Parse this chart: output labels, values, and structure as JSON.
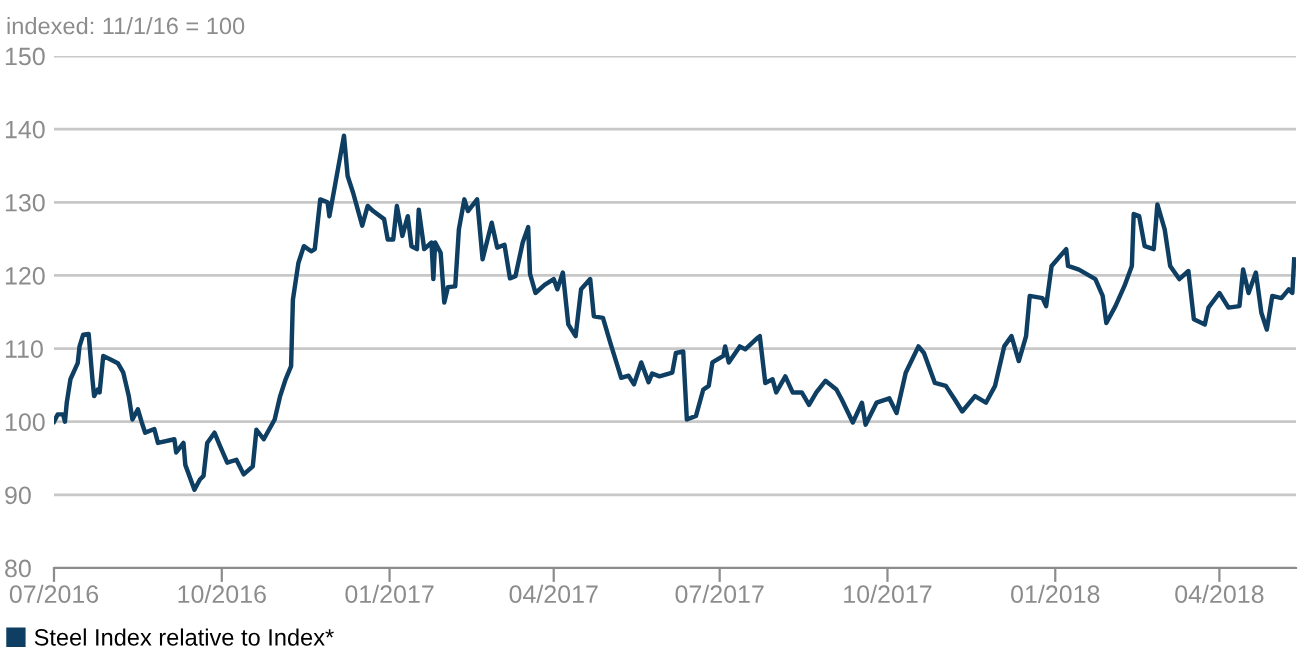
{
  "chart_data": {
    "type": "line",
    "ylabel": "indexed: 11/1/16 = 100",
    "x": [
      "2016-07-01",
      "2016-07-03",
      "2016-07-06",
      "2016-07-07",
      "2016-07-08",
      "2016-07-10",
      "2016-07-14",
      "2016-07-15",
      "2016-07-17",
      "2016-07-20",
      "2016-07-22",
      "2016-07-23",
      "2016-07-25",
      "2016-07-26",
      "2016-07-28",
      "2016-08-01",
      "2016-08-05",
      "2016-08-08",
      "2016-08-11",
      "2016-08-13",
      "2016-08-16",
      "2016-08-18",
      "2016-08-20",
      "2016-08-25",
      "2016-08-27",
      "2016-09-05",
      "2016-09-06",
      "2016-09-10",
      "2016-09-11",
      "2016-09-16",
      "2016-09-19",
      "2016-09-21",
      "2016-09-23",
      "2016-09-27",
      "2016-09-30",
      "2016-10-04",
      "2016-10-09",
      "2016-10-13",
      "2016-10-18",
      "2016-10-20",
      "2016-10-24",
      "2016-10-30",
      "2016-11-02",
      "2016-11-05",
      "2016-11-08",
      "2016-11-09",
      "2016-11-12",
      "2016-11-15",
      "2016-11-19",
      "2016-11-21",
      "2016-11-24",
      "2016-11-28",
      "2016-11-29",
      "2016-12-02",
      "2016-12-07",
      "2016-12-09",
      "2016-12-12",
      "2016-12-14",
      "2016-12-17",
      "2016-12-20",
      "2016-12-23",
      "2016-12-29",
      "2016-12-31",
      "2017-01-03",
      "2017-01-05",
      "2017-01-08",
      "2017-01-11",
      "2017-01-13",
      "2017-01-16",
      "2017-01-17",
      "2017-01-20",
      "2017-01-24",
      "2017-01-25",
      "2017-01-26",
      "2017-01-29",
      "2017-01-31",
      "2017-02-02",
      "2017-02-06",
      "2017-02-08",
      "2017-02-11",
      "2017-02-13",
      "2017-02-18",
      "2017-02-21",
      "2017-02-26",
      "2017-03-01",
      "2017-03-05",
      "2017-03-08",
      "2017-03-11",
      "2017-03-15",
      "2017-03-18",
      "2017-03-19",
      "2017-03-22",
      "2017-03-27",
      "2017-04-01",
      "2017-04-03",
      "2017-04-06",
      "2017-04-09",
      "2017-04-13",
      "2017-04-16",
      "2017-04-21",
      "2017-04-23",
      "2017-04-28",
      "2017-05-02",
      "2017-05-06",
      "2017-05-08",
      "2017-05-12",
      "2017-05-15",
      "2017-05-19",
      "2017-05-23",
      "2017-05-25",
      "2017-05-29",
      "2017-06-05",
      "2017-06-07",
      "2017-06-11",
      "2017-06-13",
      "2017-06-18",
      "2017-06-22",
      "2017-06-25",
      "2017-06-27",
      "2017-07-03",
      "2017-07-04",
      "2017-07-06",
      "2017-07-12",
      "2017-07-15",
      "2017-07-21",
      "2017-07-23",
      "2017-07-26",
      "2017-07-30",
      "2017-08-01",
      "2017-08-06",
      "2017-08-10",
      "2017-08-15",
      "2017-08-19",
      "2017-08-23",
      "2017-08-28",
      "2017-09-03",
      "2017-09-06",
      "2017-09-12",
      "2017-09-17",
      "2017-09-19",
      "2017-09-25",
      "2017-10-02",
      "2017-10-06",
      "2017-10-11",
      "2017-10-18",
      "2017-10-21",
      "2017-10-27",
      "2017-11-02",
      "2017-11-07",
      "2017-11-11",
      "2017-11-18",
      "2017-11-24",
      "2017-11-29",
      "2017-12-04",
      "2017-12-08",
      "2017-12-12",
      "2017-12-16",
      "2017-12-18",
      "2017-12-25",
      "2017-12-27",
      "2017-12-30",
      "2018-01-07",
      "2018-01-08",
      "2018-01-14",
      "2018-01-23",
      "2018-01-27",
      "2018-01-29",
      "2018-02-03",
      "2018-02-08",
      "2018-02-12",
      "2018-02-13",
      "2018-02-16",
      "2018-02-19",
      "2018-02-24",
      "2018-02-26",
      "2018-03-02",
      "2018-03-05",
      "2018-03-10",
      "2018-03-15",
      "2018-03-18",
      "2018-03-24",
      "2018-03-26",
      "2018-04-01",
      "2018-04-06",
      "2018-04-12",
      "2018-04-14",
      "2018-04-17",
      "2018-04-21",
      "2018-04-24",
      "2018-04-27",
      "2018-04-30",
      "2018-05-05",
      "2018-05-09",
      "2018-05-11",
      "2018-05-12"
    ],
    "series": [
      {
        "name": "Steel Index relative to Index*",
        "color": "#0e3f63",
        "values": [
          100,
          101,
          101,
          100,
          102.6,
          105.8,
          108,
          110.3,
          111.9,
          112,
          106,
          103.5,
          104.4,
          104,
          109,
          108.5,
          108,
          106.7,
          103.5,
          100.3,
          101.7,
          100,
          98.5,
          99,
          97.1,
          97.6,
          95.8,
          97.1,
          94.1,
          90.7,
          92.1,
          92.6,
          97.1,
          98.5,
          96.7,
          94.4,
          94.8,
          92.8,
          93.9,
          98.9,
          97.6,
          100.3,
          103.5,
          105.8,
          107.6,
          116.7,
          121.7,
          124,
          123.3,
          123.6,
          130.4,
          130,
          128.1,
          132.2,
          139.1,
          133.6,
          131.3,
          129.5,
          126.8,
          129.5,
          128.8,
          127.7,
          124.9,
          124.9,
          129.5,
          125.4,
          128.1,
          124,
          123.6,
          129,
          123.6,
          124.5,
          119.5,
          124.5,
          123.1,
          116.3,
          118.4,
          118.5,
          126.3,
          130.4,
          128.8,
          130.4,
          122.2,
          127.2,
          123.8,
          124.2,
          119.6,
          119.9,
          124.5,
          126.6,
          120.2,
          117.6,
          118.7,
          119.5,
          118.1,
          120.4,
          113.3,
          111.7,
          118.1,
          119.5,
          114.4,
          114.2,
          110.8,
          107.6,
          106,
          106.3,
          105.1,
          108.1,
          105.4,
          106.6,
          106.2,
          106.7,
          109.4,
          109.6,
          100.3,
          100.8,
          104.4,
          104.9,
          108.1,
          109,
          110.3,
          108.1,
          110.3,
          109.9,
          111.3,
          111.7,
          105.3,
          105.8,
          104,
          106.2,
          104,
          104,
          102.3,
          104,
          105.6,
          104.4,
          103,
          99.9,
          102.6,
          99.6,
          102.6,
          103.2,
          101.2,
          106.7,
          110.3,
          109.4,
          105.3,
          104.9,
          103,
          101.4,
          103.5,
          102.6,
          104.9,
          110.3,
          111.7,
          108.3,
          111.7,
          117.2,
          116.9,
          115.8,
          121.3,
          123.6,
          121.3,
          120.8,
          119.5,
          117.2,
          113.5,
          115.8,
          118.6,
          121.3,
          128.4,
          128.1,
          124,
          123.6,
          129.7,
          126.3,
          121.3,
          119.5,
          120.6,
          114,
          113.3,
          115.6,
          117.6,
          115.6,
          115.8,
          120.8,
          117.6,
          120.4,
          114.9,
          112.6,
          117.2,
          116.9,
          118.1,
          117.6,
          122.2
        ]
      }
    ],
    "xlim": [
      "2016-07-01",
      "2018-05-13"
    ],
    "xticks": [
      {
        "value": "2016-07-01",
        "label": "07/2016"
      },
      {
        "value": "2016-10-01",
        "label": "10/2016"
      },
      {
        "value": "2017-01-01",
        "label": "01/2017"
      },
      {
        "value": "2017-04-01",
        "label": "04/2017"
      },
      {
        "value": "2017-07-01",
        "label": "07/2017"
      },
      {
        "value": "2017-10-01",
        "label": "10/2017"
      },
      {
        "value": "2018-01-01",
        "label": "01/2018"
      },
      {
        "value": "2018-04-01",
        "label": "04/2018"
      }
    ],
    "ylim": [
      80,
      150
    ],
    "yticks": [
      80,
      90,
      100,
      110,
      120,
      130,
      140,
      150
    ],
    "grid": "y",
    "legend": "bottom left",
    "marker": "none",
    "line_style": "solid"
  }
}
